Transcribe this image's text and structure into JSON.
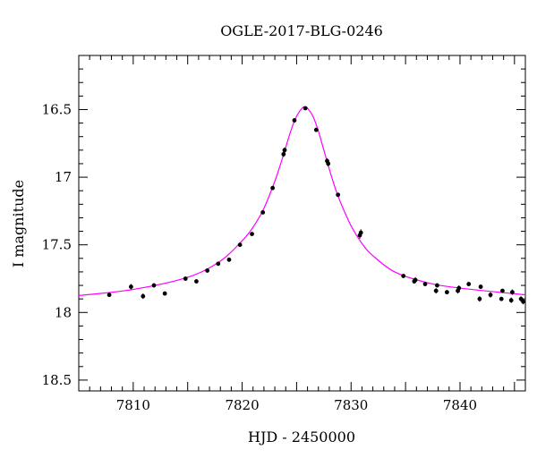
{
  "chart_data": {
    "type": "scatter",
    "title": "OGLE-2017-BLG-0246",
    "xlabel": "HJD - 2450000",
    "ylabel": "I magnitude",
    "xlim": [
      7805,
      7846
    ],
    "ylim": [
      16.1,
      18.58
    ],
    "y_inverted": true,
    "grid": false,
    "x_ticks": [
      {
        "value": 7810,
        "label": "7810"
      },
      {
        "value": 7820,
        "label": "7820"
      },
      {
        "value": 7830,
        "label": "7830"
      },
      {
        "value": 7840,
        "label": "7840"
      }
    ],
    "y_ticks": [
      {
        "value": 16.5,
        "label": "16.5"
      },
      {
        "value": 17,
        "label": "17"
      },
      {
        "value": 17.5,
        "label": "17.5"
      },
      {
        "value": 18,
        "label": "18"
      },
      {
        "value": 18.5,
        "label": "18.5"
      }
    ],
    "series": [
      {
        "kind": "points",
        "color": "#000000",
        "x": [
          7807.8,
          7809.8,
          7810.9,
          7811.9,
          7812.9,
          7814.8,
          7815.8,
          7816.8,
          7817.8,
          7818.8,
          7819.8,
          7820.9,
          7821.9,
          7822.8,
          7823.8,
          7823.9,
          7824.8,
          7825.8,
          7826.8,
          7827.8,
          7827.9,
          7828.8,
          7830.8,
          7830.9,
          7834.8,
          7835.8,
          7835.9,
          7836.8,
          7837.8,
          7837.9,
          7838.8,
          7839.8,
          7839.9,
          7840.8,
          7841.8,
          7841.9,
          7842.8,
          7843.8,
          7843.9,
          7844.7,
          7844.8,
          7845.6,
          7845.8
        ],
        "y": [
          17.87,
          17.81,
          17.88,
          17.8,
          17.86,
          17.75,
          17.77,
          17.69,
          17.64,
          17.61,
          17.5,
          17.42,
          17.26,
          17.08,
          16.83,
          16.8,
          16.58,
          16.49,
          16.65,
          16.88,
          16.9,
          17.13,
          17.43,
          17.41,
          17.73,
          17.77,
          17.76,
          17.79,
          17.84,
          17.8,
          17.85,
          17.84,
          17.82,
          17.79,
          17.9,
          17.81,
          17.87,
          17.9,
          17.84,
          17.91,
          17.85,
          17.9,
          17.92
        ],
        "err": [
          0.015,
          0.02,
          0.02,
          0.015,
          0.015,
          0.015,
          0.015,
          0.015,
          0.015,
          0.015,
          0.015,
          0.015,
          0.015,
          0.012,
          0.02,
          0.02,
          0.012,
          0.012,
          0.012,
          0.02,
          0.02,
          0.012,
          0.025,
          0.025,
          0.015,
          0.015,
          0.02,
          0.015,
          0.02,
          0.015,
          0.015,
          0.02,
          0.02,
          0.015,
          0.02,
          0.015,
          0.02,
          0.015,
          0.015,
          0.02,
          0.02,
          0.02,
          0.02
        ]
      },
      {
        "kind": "model",
        "color": "#ff00ff",
        "x": [
          7805,
          7810,
          7815,
          7818,
          7820,
          7821,
          7822,
          7823,
          7823.5,
          7824,
          7824.5,
          7825,
          7825.5,
          7825.8,
          7826,
          7826.5,
          7827,
          7827.5,
          7828,
          7828.5,
          7829,
          7830,
          7831,
          7832,
          7834,
          7837,
          7840,
          7846
        ],
        "y": [
          17.875,
          17.83,
          17.74,
          17.62,
          17.47,
          17.37,
          17.23,
          17.03,
          16.91,
          16.78,
          16.65,
          16.55,
          16.49,
          16.48,
          16.49,
          16.55,
          16.66,
          16.8,
          16.94,
          17.07,
          17.18,
          17.36,
          17.49,
          17.58,
          17.7,
          17.78,
          17.82,
          17.87
        ]
      }
    ]
  }
}
